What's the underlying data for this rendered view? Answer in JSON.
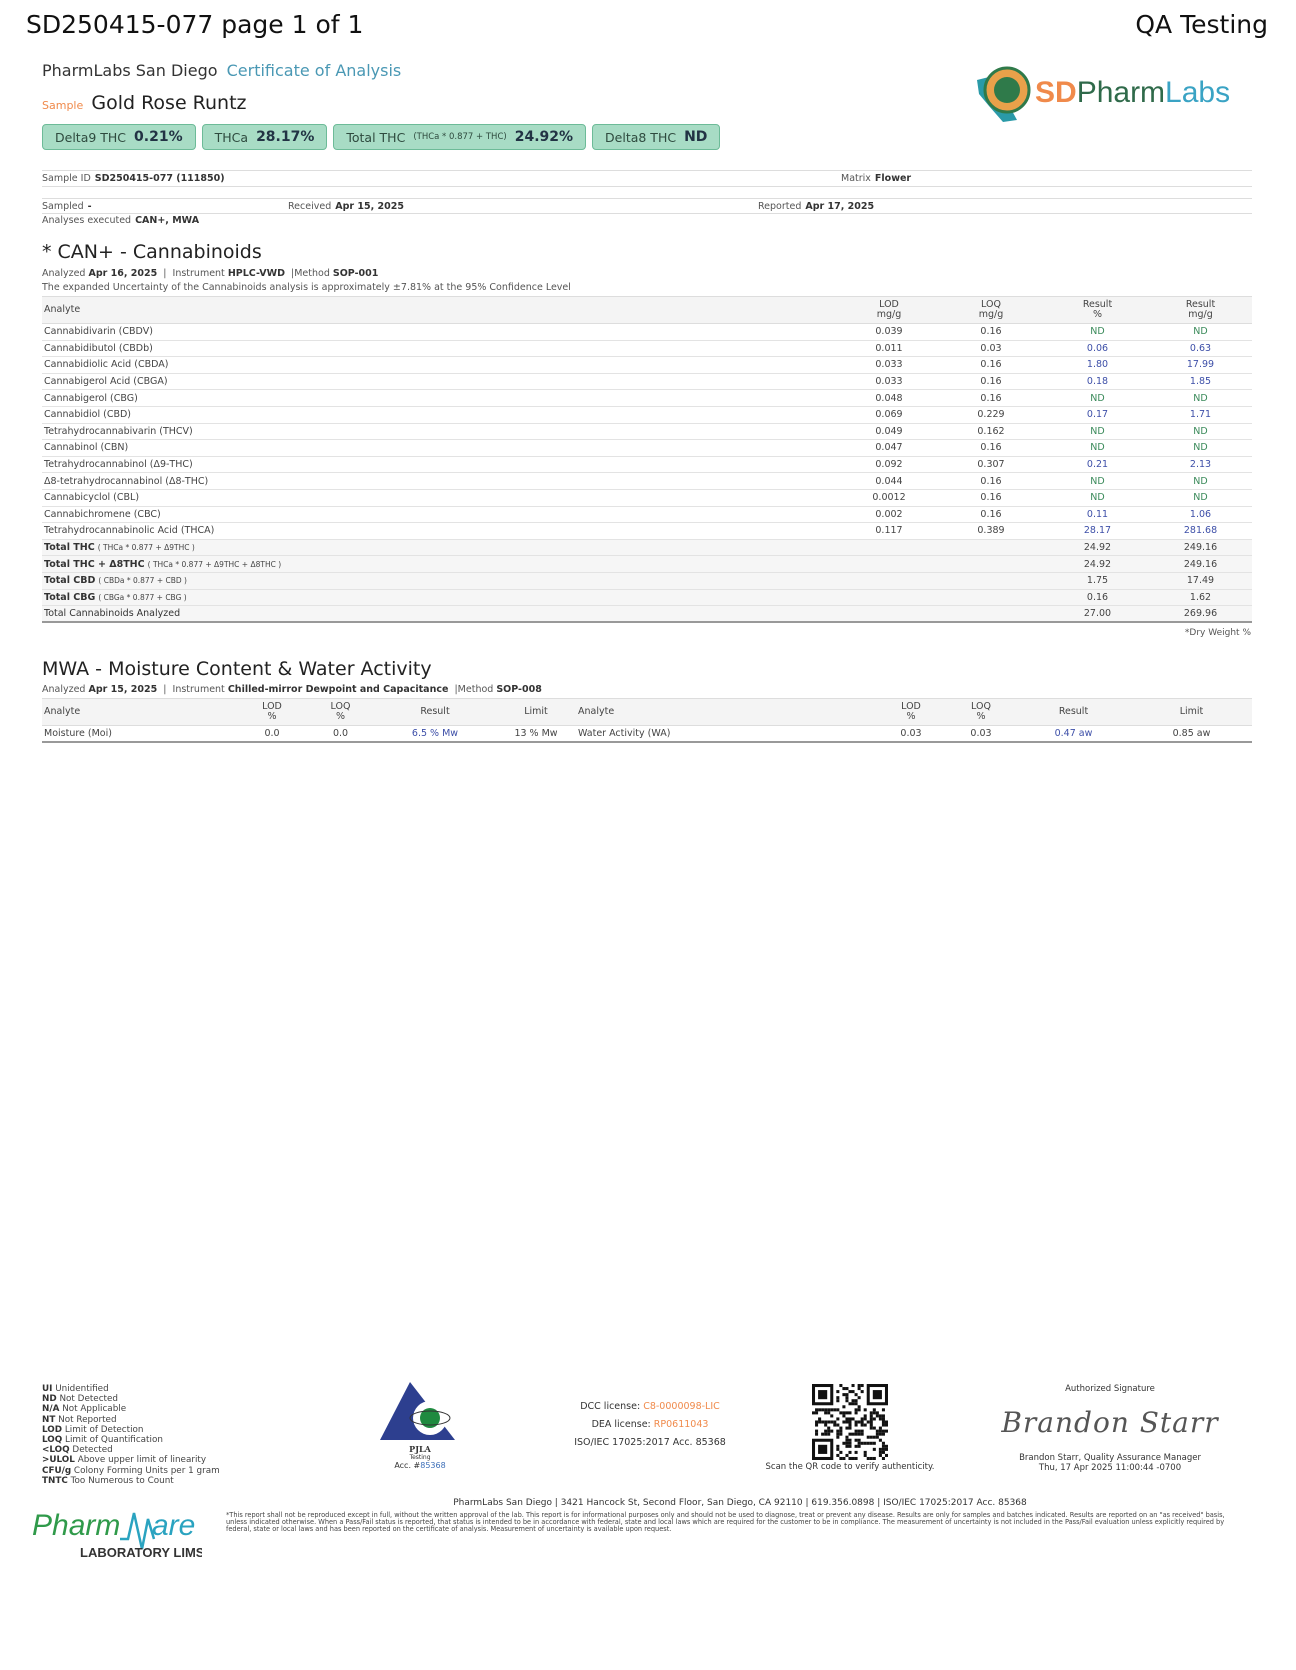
{
  "page_header": {
    "title": "SD250415-077 page 1 of 1",
    "right_title": "QA Testing"
  },
  "lab": {
    "name": "PharmLabs San Diego",
    "doc_type": "Certificate of Analysis",
    "logo_text": "SDPharmLabs"
  },
  "sample": {
    "label": "Sample",
    "name": "Gold Rose Runtz"
  },
  "badges": [
    {
      "label": "Delta9 THC",
      "formula": "",
      "value": "0.21%"
    },
    {
      "label": "THCa",
      "formula": "",
      "value": "28.17%"
    },
    {
      "label": "Total THC",
      "formula": "(THCa * 0.877 + THC)",
      "value": "24.92%"
    },
    {
      "label": "Delta8 THC",
      "formula": "",
      "value": "ND"
    }
  ],
  "info": {
    "sample_id_label": "Sample ID",
    "sample_id": "SD250415-077 (111850)",
    "matrix_label": "Matrix",
    "matrix": "Flower",
    "sampled_label": "Sampled",
    "sampled": "-",
    "received_label": "Received",
    "received": "Apr 15, 2025",
    "reported_label": "Reported",
    "reported": "Apr 17, 2025",
    "analyses_label": "Analyses executed",
    "analyses": "CAN+, MWA"
  },
  "cannabinoids": {
    "title": "* CAN+ - Cannabinoids",
    "analyzed_label": "Analyzed",
    "analyzed": "Apr 16, 2025",
    "instrument_label": "Instrument",
    "instrument": "HPLC-VWD",
    "method_label": "Method",
    "method": "SOP-001",
    "uncertainty": "The expanded Uncertainty of the Cannabinoids analysis is approximately ±7.81% at the 95% Confidence Level",
    "headers": [
      "Analyte",
      "LOD",
      "mg/g",
      "LOQ",
      "mg/g",
      "Result",
      "%",
      "Result",
      "mg/g"
    ],
    "rows": [
      [
        "Cannabidivarin (CBDV)",
        "0.039",
        "0.16",
        "ND",
        "ND"
      ],
      [
        "Cannabidibutol (CBDb)",
        "0.011",
        "0.03",
        "0.06",
        "0.63"
      ],
      [
        "Cannabidiolic Acid (CBDA)",
        "0.033",
        "0.16",
        "1.80",
        "17.99"
      ],
      [
        "Cannabigerol Acid (CBGA)",
        "0.033",
        "0.16",
        "0.18",
        "1.85"
      ],
      [
        "Cannabigerol (CBG)",
        "0.048",
        "0.16",
        "ND",
        "ND"
      ],
      [
        "Cannabidiol (CBD)",
        "0.069",
        "0.229",
        "0.17",
        "1.71"
      ],
      [
        "Tetrahydrocannabivarin (THCV)",
        "0.049",
        "0.162",
        "ND",
        "ND"
      ],
      [
        "Cannabinol (CBN)",
        "0.047",
        "0.16",
        "ND",
        "ND"
      ],
      [
        "Tetrahydrocannabinol (Δ9-THC)",
        "0.092",
        "0.307",
        "0.21",
        "2.13"
      ],
      [
        "Δ8-tetrahydrocannabinol (Δ8-THC)",
        "0.044",
        "0.16",
        "ND",
        "ND"
      ],
      [
        "Cannabicyclol (CBL)",
        "0.0012",
        "0.16",
        "ND",
        "ND"
      ],
      [
        "Cannabichromene (CBC)",
        "0.002",
        "0.16",
        "0.11",
        "1.06"
      ],
      [
        "Tetrahydrocannabinolic Acid (THCA)",
        "0.117",
        "0.389",
        "28.17",
        "281.68"
      ]
    ],
    "totals": [
      [
        "Total THC",
        "( THCa * 0.877 + Δ9THC )",
        "24.92",
        "249.16"
      ],
      [
        "Total THC + Δ8THC",
        "( THCa * 0.877 + Δ9THC + Δ8THC )",
        "24.92",
        "249.16"
      ],
      [
        "Total CBD",
        "( CBDa * 0.877 + CBD )",
        "1.75",
        "17.49"
      ],
      [
        "Total CBG",
        "( CBGa * 0.877 + CBG )",
        "0.16",
        "1.62"
      ],
      [
        "Total Cannabinoids Analyzed",
        "",
        "27.00",
        "269.96"
      ]
    ],
    "footnote": "*Dry Weight %"
  },
  "moisture": {
    "title": "MWA - Moisture Content & Water Activity",
    "analyzed_label": "Analyzed",
    "analyzed": "Apr 15, 2025",
    "instrument_label": "Instrument",
    "instrument": "Chilled-mirror Dewpoint and Capacitance",
    "method_label": "Method",
    "method": "SOP-008",
    "headers": [
      "Analyte",
      "LOD",
      "%",
      "LOQ",
      "%",
      "Result",
      "Limit"
    ],
    "rows": [
      {
        "analyte": "Moisture (Moi)",
        "lod": "0.0",
        "loq": "0.0",
        "result": "6.5 % Mw",
        "limit": "13 % Mw"
      },
      {
        "analyte": "Water Activity (WA)",
        "lod": "0.03",
        "loq": "0.03",
        "result": "0.47 aw",
        "limit": "0.85 aw"
      }
    ]
  },
  "footer": {
    "legend": [
      [
        "UI",
        "Unidentified"
      ],
      [
        "ND",
        "Not Detected"
      ],
      [
        "N/A",
        "Not Applicable"
      ],
      [
        "NT",
        "Not Reported"
      ],
      [
        "LOD",
        "Limit of Detection"
      ],
      [
        "LOQ",
        "Limit of Quantification"
      ],
      [
        "<LOQ",
        "Detected"
      ],
      [
        ">ULOL",
        "Above upper limit of linearity"
      ],
      [
        "CFU/g",
        "Colony Forming Units per 1 gram"
      ],
      [
        "TNTC",
        "Too Numerous to Count"
      ]
    ],
    "pjla": {
      "name": "PJLA",
      "sub": "Testing",
      "acc_label": "Acc. #",
      "acc": "85368"
    },
    "dcc_label": "DCC license:",
    "dcc": "C8-0000098-LIC",
    "dea_label": "DEA license:",
    "dea": "RP0611043",
    "iso": "ISO/IEC 17025:2017 Acc. 85368",
    "qr_text": "Scan the QR code to verify authenticity.",
    "sig_label": "Authorized Signature",
    "signature": "Brandon Starr",
    "signer": "Brandon Starr, Quality Assurance Manager",
    "signed_at": "Thu, 17 Apr 2025 11:00:44 -0700",
    "address": "PharmLabs San Diego | 3421 Hancock St, Second Floor, San Diego, CA 92110 | 619.356.0898 | ISO/IEC 17025:2017 Acc. 85368",
    "disclaimer": "*This report shall not be reproduced except in full, without the written approval of the lab. This report is for informational purposes only and should not be used to diagnose, treat or prevent any disease. Results are only for samples and batches indicated. Results are reported on an \"as received\" basis, unless indicated otherwise. When a Pass/Fail status is reported, that status is intended to be in accordance with federal, state and local laws which are required for the customer to be in compliance. The measurement of uncertainty is not included in the Pass/Fail evaluation unless explicitly required by federal, state or local laws and has been reported on the certificate of analysis. Measurement of uncertainty is available upon request.",
    "pharmware_logo": "PharmWare LABORATORY LIMS & ELN"
  },
  "colors": {
    "badge_bg": "#a8dcc5",
    "nd": "#3a8a5a",
    "positive": "#3d4fa8",
    "accent_orange": "#f08a4b",
    "accent_blue": "#4a98b4"
  }
}
